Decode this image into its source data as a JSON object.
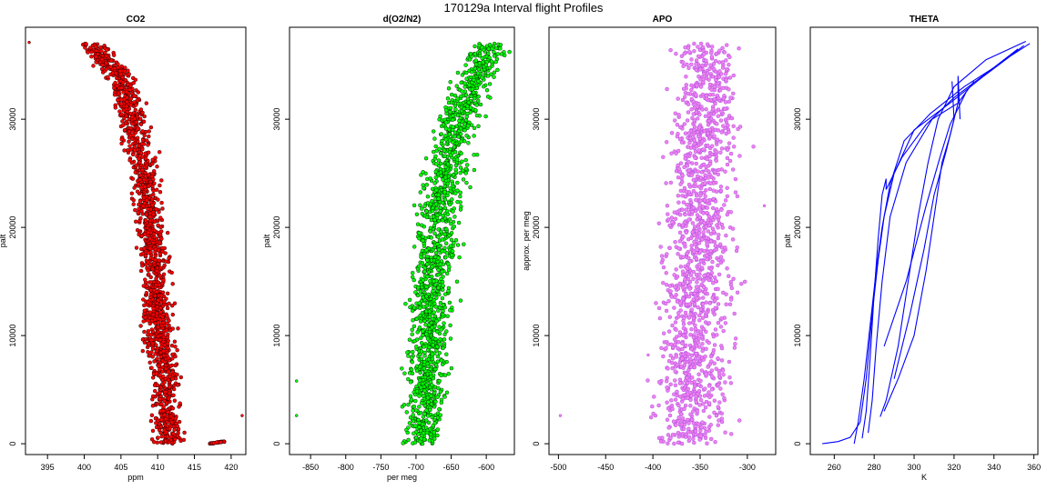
{
  "main_title": "170129a   Interval flight Profiles",
  "chart_data": [
    {
      "type": "scatter",
      "title": "CO2",
      "xlabel": "ppm",
      "ylabel": "palt",
      "xlim": [
        392,
        422
      ],
      "ylim": [
        -1000,
        38500
      ],
      "xticks": [
        395,
        400,
        405,
        410,
        415,
        420
      ],
      "yticks": [
        0,
        10000,
        20000,
        30000
      ],
      "series": [
        {
          "color": "#ff0000",
          "edge": "#000000",
          "profile": [
            [
              0,
              411.5
            ],
            [
              2000,
              411.2
            ],
            [
              5000,
              411
            ],
            [
              8000,
              410.5
            ],
            [
              11000,
              410
            ],
            [
              14000,
              409.8
            ],
            [
              17000,
              409.5
            ],
            [
              20000,
              409
            ],
            [
              23000,
              408.5
            ],
            [
              26000,
              408
            ],
            [
              29000,
              407
            ],
            [
              32000,
              406
            ],
            [
              34000,
              405
            ],
            [
              36000,
              402
            ],
            [
              37000,
              401
            ]
          ],
          "spread": 3.2
        },
        {
          "color": "#ff0000",
          "edge": "#000000",
          "profile": [
            [
              0,
              417
            ],
            [
              200,
              419
            ]
          ],
          "spread": 0.6
        }
      ],
      "outliers": [
        [
          392.5,
          37100
        ],
        [
          421.5,
          2600
        ]
      ]
    },
    {
      "type": "scatter",
      "title": "d(O2/N2)",
      "xlabel": "per meg",
      "ylabel": "palt",
      "xlim": [
        -880,
        -560
      ],
      "ylim": [
        -1000,
        38500
      ],
      "xticks": [
        -850,
        -800,
        -750,
        -700,
        -650,
        -600
      ],
      "yticks": [
        0,
        10000,
        20000,
        30000
      ],
      "series": [
        {
          "color": "#00ff00",
          "edge": "#000000",
          "profile": [
            [
              0,
              -690
            ],
            [
              3000,
              -688
            ],
            [
              6000,
              -685
            ],
            [
              9000,
              -682
            ],
            [
              12000,
              -680
            ],
            [
              15000,
              -675
            ],
            [
              18000,
              -672
            ],
            [
              21000,
              -668
            ],
            [
              24000,
              -660
            ],
            [
              27000,
              -652
            ],
            [
              30000,
              -640
            ],
            [
              33000,
              -620
            ],
            [
              35000,
              -605
            ],
            [
              37000,
              -595
            ]
          ],
          "spread": 48
        }
      ],
      "outliers": [
        [
          -870,
          5800
        ],
        [
          -870,
          2600
        ]
      ]
    },
    {
      "type": "scatter",
      "title": "APO",
      "xlabel": "",
      "ylabel": "approx. per meg",
      "xlim": [
        -510,
        -270
      ],
      "ylim": [
        -1000,
        38500
      ],
      "xticks": [
        -500,
        -450,
        -400,
        -350,
        -300
      ],
      "yticks": [
        0,
        10000,
        20000,
        30000
      ],
      "series": [
        {
          "color": "#ee82ee",
          "edge": "#a040e0",
          "profile": [
            [
              0,
              -360
            ],
            [
              5000,
              -358
            ],
            [
              10000,
              -355
            ],
            [
              15000,
              -352
            ],
            [
              20000,
              -350
            ],
            [
              25000,
              -348
            ],
            [
              30000,
              -345
            ],
            [
              35000,
              -342
            ],
            [
              37000,
              -350
            ]
          ],
          "spread": 60
        }
      ],
      "outliers": [
        [
          -498,
          2600
        ],
        [
          -405,
          8200
        ],
        [
          -282,
          22000
        ]
      ]
    },
    {
      "type": "line",
      "title": "THETA",
      "xlabel": "K",
      "ylabel": "palt",
      "xlim": [
        248,
        362
      ],
      "ylim": [
        -1000,
        38500
      ],
      "xticks": [
        260,
        280,
        300,
        320,
        340,
        360
      ],
      "yticks": [
        0,
        10000,
        20000,
        30000
      ],
      "line_color": "#0000ff",
      "series": [
        {
          "points": [
            [
              254,
              0
            ],
            [
              262,
              200
            ],
            [
              268,
              600
            ],
            [
              273,
              2000
            ],
            [
              276,
              6000
            ],
            [
              279,
              12000
            ],
            [
              282,
              17000
            ],
            [
              285,
              21000
            ],
            [
              290,
              25000
            ],
            [
              300,
              29000
            ],
            [
              318,
              31500
            ],
            [
              335,
              34000
            ],
            [
              348,
              35800
            ],
            [
              358,
              37000
            ]
          ]
        },
        {
          "points": [
            [
              270,
              0
            ],
            [
              272,
              2000
            ],
            [
              275,
              6000
            ],
            [
              278,
              11000
            ],
            [
              281,
              16000
            ],
            [
              284,
              20000
            ],
            [
              288,
              24000
            ],
            [
              295,
              28000
            ],
            [
              308,
              30500
            ],
            [
              325,
              33000
            ],
            [
              342,
              35000
            ],
            [
              355,
              36800
            ]
          ]
        },
        {
          "points": [
            [
              274,
              500
            ],
            [
              276,
              3000
            ],
            [
              278,
              8000
            ],
            [
              280,
              14000
            ],
            [
              282,
              19000
            ],
            [
              284,
              23000
            ],
            [
              286,
              24500
            ],
            [
              286,
              23500
            ],
            [
              294,
              26500
            ],
            [
              306,
              29500
            ],
            [
              320,
              32000
            ],
            [
              338,
              34500
            ],
            [
              352,
              36500
            ]
          ]
        },
        {
          "points": [
            [
              277,
              1000
            ],
            [
              279,
              4000
            ],
            [
              281,
              9000
            ],
            [
              284,
              15000
            ],
            [
              288,
              21000
            ],
            [
              296,
              26000
            ],
            [
              309,
              30000
            ],
            [
              322,
              31500
            ],
            [
              322,
              34000
            ],
            [
              323,
              30000
            ]
          ]
        },
        {
          "points": [
            [
              283,
              2500
            ],
            [
              286,
              4000
            ],
            [
              292,
              9000
            ],
            [
              297,
              15000
            ],
            [
              302,
              21000
            ],
            [
              307,
              26000
            ],
            [
              312,
              30000
            ],
            [
              320,
              33000
            ],
            [
              336,
              35500
            ],
            [
              356,
              37200
            ]
          ]
        },
        {
          "points": [
            [
              285,
              3000
            ],
            [
              292,
              6000
            ],
            [
              300,
              10000
            ],
            [
              306,
              16000
            ],
            [
              310,
              21000
            ],
            [
              314,
              26000
            ],
            [
              318,
              28500
            ],
            [
              322,
              31500
            ],
            [
              330,
              33500
            ]
          ]
        },
        {
          "points": [
            [
              290,
              6000
            ],
            [
              298,
              12000
            ],
            [
              305,
              18000
            ],
            [
              310,
              23000
            ],
            [
              316,
              27000
            ],
            [
              320,
              30000
            ],
            [
              319,
              33500
            ]
          ]
        },
        {
          "points": [
            [
              285,
              9000
            ],
            [
              296,
              15000
            ],
            [
              306,
              22000
            ],
            [
              313,
              26500
            ],
            [
              318,
              29500
            ],
            [
              322,
              31000
            ],
            [
              326,
              32500
            ]
          ]
        }
      ]
    }
  ]
}
